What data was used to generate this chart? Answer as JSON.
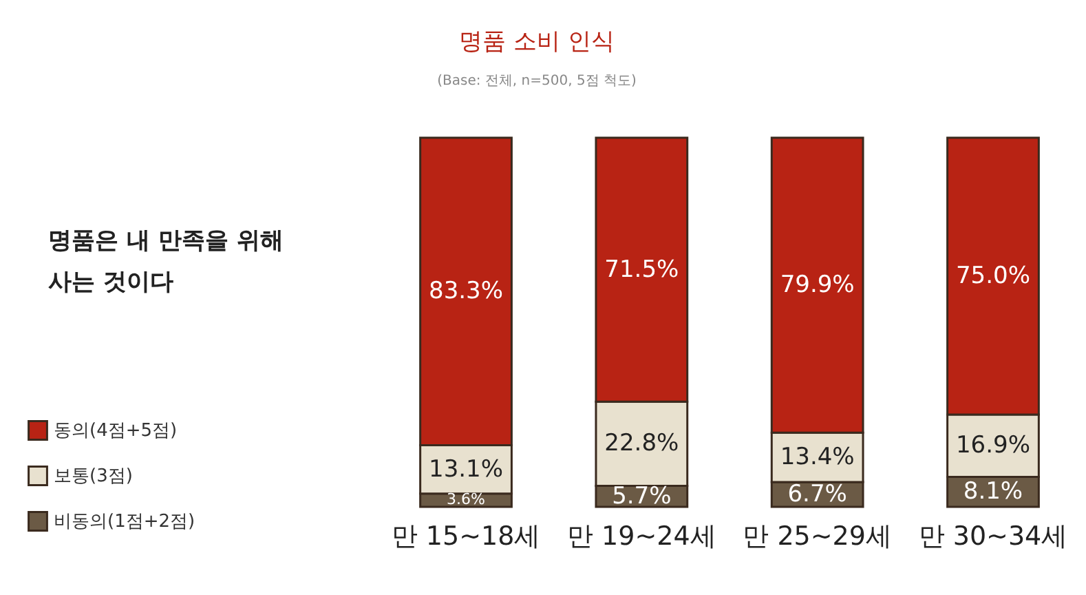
{
  "chart_data": {
    "type": "bar",
    "title": "명품 소비 인식",
    "subtitle": "(Base: 전체, n=500, 5점 척도)",
    "categories": [
      "만 15~18세",
      "만 19~24세",
      "만 25~29세",
      "만 30~34세"
    ],
    "stacked": true,
    "legend": "bottom left",
    "series": [
      {
        "name": "비동의(1점+2점)",
        "color": "#6b5a45",
        "values": [
          3.6,
          5.7,
          6.7,
          8.1
        ],
        "value_labels": [
          "3.6%",
          "5.7%",
          "6.7%",
          "8.1%"
        ]
      },
      {
        "name": "보통(3점)",
        "color": "#e8e1cf",
        "values": [
          13.1,
          22.8,
          13.4,
          16.9
        ],
        "value_labels": [
          "13.1%",
          "22.8%",
          "13.4%",
          "16.9%"
        ]
      },
      {
        "name": "동의(4점+5점)",
        "color": "#b82314",
        "values": [
          83.3,
          71.5,
          79.9,
          75.0
        ],
        "value_labels": [
          "83.3%",
          "71.5%",
          "79.9%",
          "75.0%"
        ]
      }
    ],
    "annotations": [
      "명품은 내 만족을 위해\n사는 것이다"
    ]
  }
}
